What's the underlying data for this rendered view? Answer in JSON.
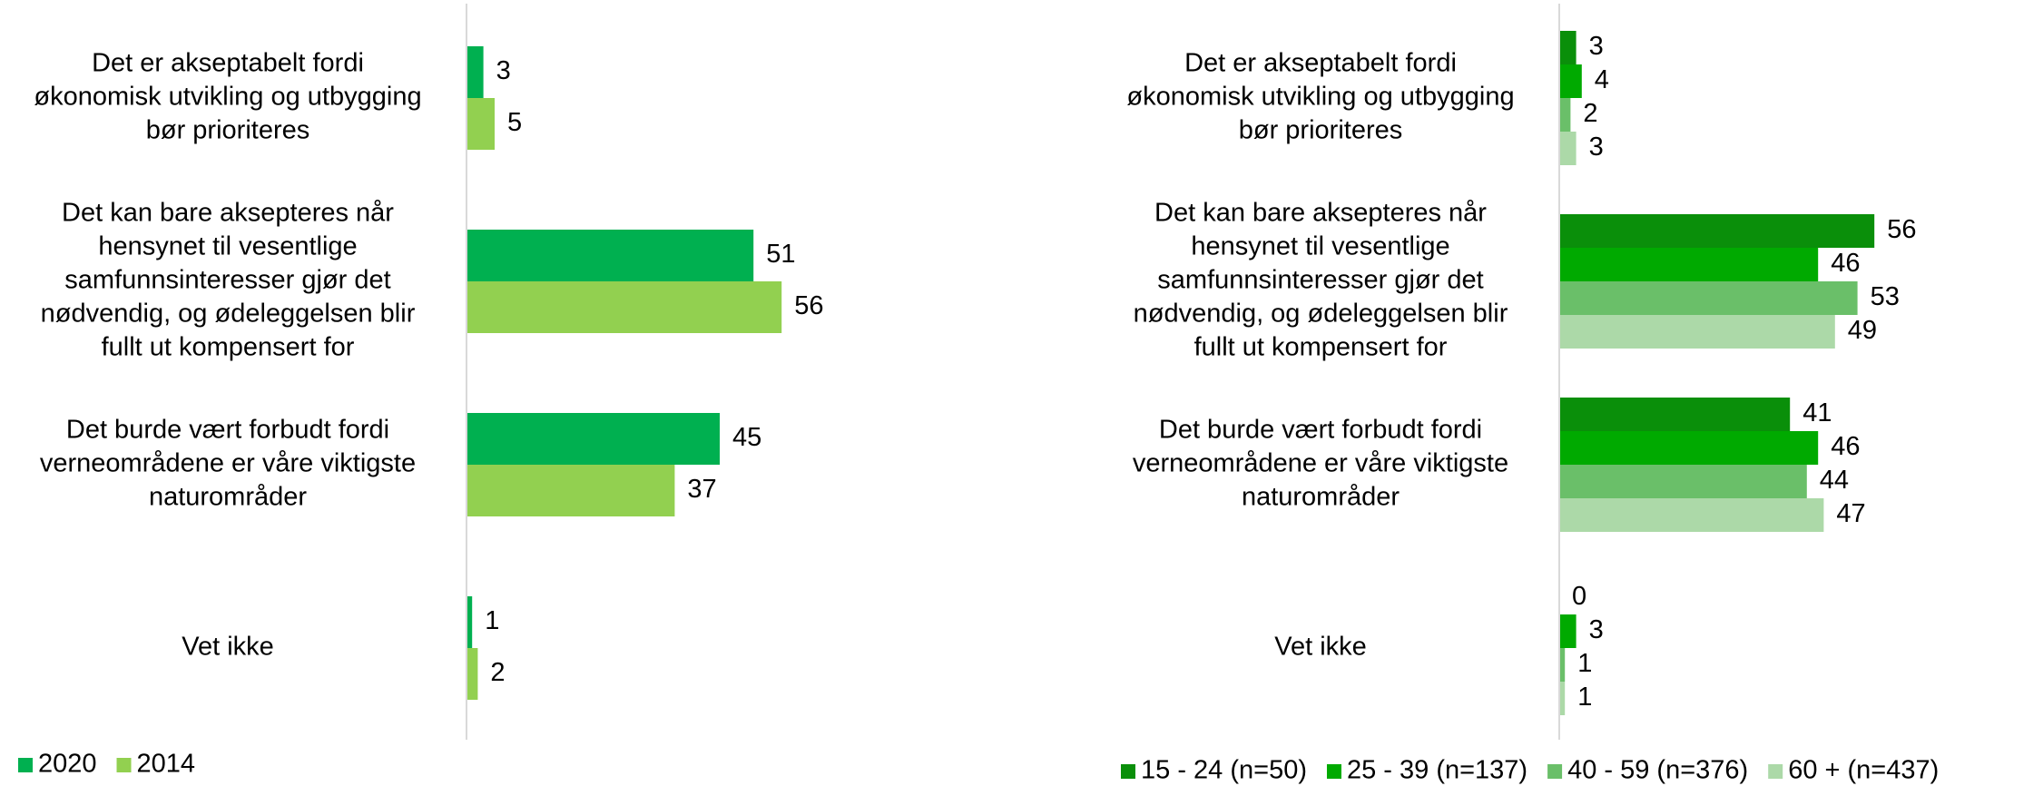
{
  "chart_data": [
    {
      "type": "bar",
      "orientation": "horizontal",
      "categories": [
        [
          "Det er akseptabelt fordi",
          "økonomisk utvikling og utbygging",
          "bør prioriteres"
        ],
        [
          "Det kan bare aksepteres når",
          "hensynet til vesentlige",
          "samfunnsinteresser gjør det",
          "nødvendig, og ødeleggelsen blir",
          "fullt ut kompensert for"
        ],
        [
          "Det burde vært forbudt fordi",
          "verneområdene er våre viktigste",
          "naturområder"
        ],
        [
          "Vet ikke"
        ]
      ],
      "series": [
        {
          "name": "2020",
          "color": "#00b050",
          "values": [
            3,
            51,
            45,
            1
          ]
        },
        {
          "name": "2014",
          "color": "#92d050",
          "values": [
            5,
            56,
            37,
            2
          ]
        }
      ],
      "xlim": [
        0,
        60
      ]
    },
    {
      "type": "bar",
      "orientation": "horizontal",
      "categories": [
        [
          "Det er akseptabelt fordi",
          "økonomisk utvikling og utbygging",
          "bør prioriteres"
        ],
        [
          "Det kan bare aksepteres når",
          "hensynet til vesentlige",
          "samfunnsinteresser gjør det",
          "nødvendig, og ødeleggelsen blir",
          "fullt ut kompensert for"
        ],
        [
          "Det burde vært forbudt fordi",
          "verneområdene er våre viktigste",
          "naturområder"
        ],
        [
          "Vet ikke"
        ]
      ],
      "series": [
        {
          "name": "15 - 24 (n=50)",
          "color": "#0a8f0a",
          "values": [
            3,
            56,
            41,
            0
          ]
        },
        {
          "name": "25 - 39 (n=137)",
          "color": "#00aa00",
          "values": [
            4,
            46,
            46,
            3
          ]
        },
        {
          "name": "40 - 59 (n=376)",
          "color": "#6abf69",
          "values": [
            2,
            53,
            44,
            1
          ]
        },
        {
          "name": "60 + (n=437)",
          "color": "#acd9a8",
          "values": [
            3,
            49,
            47,
            1
          ]
        }
      ],
      "xlim": [
        0,
        60
      ]
    }
  ]
}
